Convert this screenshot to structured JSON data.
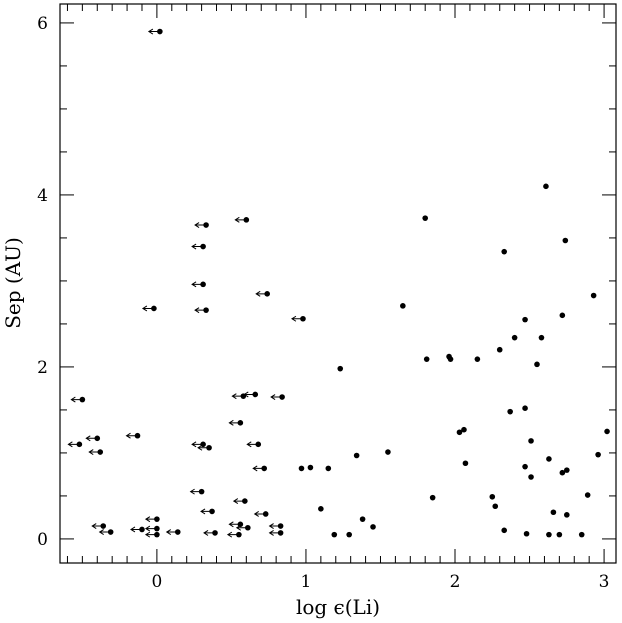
{
  "chart_data": {
    "type": "scatter",
    "title": "",
    "xlabel": "log ϵ(Li)",
    "ylabel": "Sep (AU)",
    "xlim": [
      -0.65,
      3.08
    ],
    "ylim": [
      -0.28,
      6.22
    ],
    "grid": false,
    "x_ticks": {
      "major": [
        0,
        1,
        2,
        3
      ],
      "major_labels": [
        "0",
        "1",
        "2",
        "3"
      ],
      "minor_step": 0.1
    },
    "y_ticks": {
      "major": [
        0,
        2,
        4,
        6
      ],
      "major_labels": [
        "0",
        "2",
        "4",
        "6"
      ],
      "minor_step": 0.5
    },
    "series": [
      {
        "kind": "upper_limit",
        "marker": "dot-with-left-arrow",
        "points": [
          [
            0.02,
            5.9
          ],
          [
            0.33,
            3.65
          ],
          [
            0.6,
            3.71
          ],
          [
            0.31,
            3.4
          ],
          [
            0.31,
            2.96
          ],
          [
            0.33,
            2.66
          ],
          [
            -0.02,
            2.68
          ],
          [
            0.74,
            2.85
          ],
          [
            0.98,
            2.56
          ],
          [
            0.58,
            1.66
          ],
          [
            0.66,
            1.68
          ],
          [
            0.84,
            1.65
          ],
          [
            -0.5,
            1.62
          ],
          [
            0.56,
            1.35
          ],
          [
            -0.13,
            1.2
          ],
          [
            -0.4,
            1.17
          ],
          [
            -0.52,
            1.1
          ],
          [
            0.31,
            1.1
          ],
          [
            0.35,
            1.06
          ],
          [
            0.68,
            1.1
          ],
          [
            -0.38,
            1.01
          ],
          [
            0.72,
            0.82
          ],
          [
            0.3,
            0.55
          ],
          [
            0.59,
            0.44
          ],
          [
            0.37,
            0.32
          ],
          [
            0.73,
            0.29
          ],
          [
            0.0,
            0.23
          ],
          [
            0.56,
            0.17
          ],
          [
            0.61,
            0.13
          ],
          [
            0.83,
            0.15
          ],
          [
            -0.36,
            0.15
          ],
          [
            -0.1,
            0.11
          ],
          [
            0.0,
            0.12
          ],
          [
            -0.31,
            0.08
          ],
          [
            0.14,
            0.08
          ],
          [
            0.0,
            0.05
          ],
          [
            0.39,
            0.07
          ],
          [
            0.55,
            0.05
          ],
          [
            0.83,
            0.07
          ]
        ]
      },
      {
        "kind": "detection",
        "marker": "dot",
        "points": [
          [
            2.61,
            4.1
          ],
          [
            1.8,
            3.73
          ],
          [
            2.33,
            3.34
          ],
          [
            2.74,
            3.47
          ],
          [
            2.93,
            2.83
          ],
          [
            1.65,
            2.71
          ],
          [
            2.72,
            2.6
          ],
          [
            2.47,
            2.55
          ],
          [
            2.4,
            2.34
          ],
          [
            2.58,
            2.34
          ],
          [
            2.3,
            2.2
          ],
          [
            1.96,
            2.12
          ],
          [
            1.97,
            2.09
          ],
          [
            1.81,
            2.09
          ],
          [
            2.15,
            2.09
          ],
          [
            2.55,
            2.03
          ],
          [
            1.23,
            1.98
          ],
          [
            2.37,
            1.48
          ],
          [
            2.47,
            1.52
          ],
          [
            2.03,
            1.24
          ],
          [
            2.06,
            1.27
          ],
          [
            3.02,
            1.25
          ],
          [
            2.51,
            1.14
          ],
          [
            1.55,
            1.01
          ],
          [
            1.34,
            0.97
          ],
          [
            2.96,
            0.98
          ],
          [
            2.63,
            0.93
          ],
          [
            2.07,
            0.88
          ],
          [
            0.97,
            0.82
          ],
          [
            1.03,
            0.83
          ],
          [
            1.15,
            0.82
          ],
          [
            2.47,
            0.84
          ],
          [
            2.51,
            0.72
          ],
          [
            2.72,
            0.77
          ],
          [
            2.75,
            0.8
          ],
          [
            1.85,
            0.48
          ],
          [
            2.25,
            0.49
          ],
          [
            2.89,
            0.51
          ],
          [
            1.1,
            0.35
          ],
          [
            2.27,
            0.38
          ],
          [
            2.66,
            0.31
          ],
          [
            2.75,
            0.28
          ],
          [
            1.38,
            0.23
          ],
          [
            1.45,
            0.14
          ],
          [
            2.33,
            0.1
          ],
          [
            1.19,
            0.05
          ],
          [
            1.29,
            0.05
          ],
          [
            2.48,
            0.06
          ],
          [
            2.63,
            0.05
          ],
          [
            2.7,
            0.05
          ],
          [
            2.85,
            0.05
          ]
        ]
      }
    ]
  }
}
